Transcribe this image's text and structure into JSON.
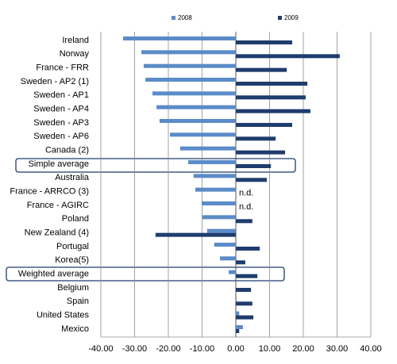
{
  "chart_data": {
    "type": "bar",
    "orientation": "horizontal",
    "categories": [
      "Ireland",
      "Norway",
      "France - FRR",
      "Sweden - AP2 (1)",
      "Sweden - AP1",
      "Sweden - AP4",
      "Sweden - AP3",
      "Sweden - AP6",
      "Canada (2)",
      "Simple average",
      "Australia",
      "France - ARRCO (3)",
      "France - AGIRC",
      "Poland",
      "New Zealand (4)",
      "Portugal",
      "Korea(5)",
      "Weighted average",
      "Belgium",
      "Spain",
      "United States",
      "Mexico"
    ],
    "series": [
      {
        "name": "2008",
        "color": "#5b8bc8",
        "values": [
          -33.4,
          -28.0,
          -27.3,
          -26.8,
          -24.7,
          -23.5,
          -22.6,
          -19.5,
          -16.5,
          -14.1,
          -12.5,
          -12.0,
          -10.1,
          -9.9,
          -8.5,
          -6.4,
          -4.7,
          -2.1,
          0,
          0.2,
          1.0,
          2.1
        ]
      },
      {
        "name": "2009",
        "color": "#1f3c6e",
        "values": [
          16.7,
          30.8,
          15.1,
          21.2,
          20.7,
          22.1,
          16.7,
          11.8,
          14.6,
          10.4,
          9.2,
          null,
          null,
          4.9,
          -23.8,
          7.1,
          2.8,
          6.4,
          4.5,
          4.9,
          5.2,
          1.0
        ],
        "value_labels": [
          null,
          null,
          null,
          null,
          null,
          null,
          null,
          null,
          null,
          null,
          null,
          "n.d.",
          "n.d.",
          null,
          null,
          null,
          null,
          null,
          null,
          null,
          null,
          null
        ]
      }
    ],
    "xlim": [
      -40,
      40
    ],
    "xticks": [
      {
        "value": -40,
        "label": "-40.00"
      },
      {
        "value": -30,
        "label": "-30.00"
      },
      {
        "value": -20,
        "label": "-20.00"
      },
      {
        "value": -10,
        "label": "-10.00"
      },
      {
        "value": 0,
        "label": "0.00"
      },
      {
        "value": 10,
        "label": "10.00"
      },
      {
        "value": 20,
        "label": "20.00"
      },
      {
        "value": 30,
        "label": "30.00"
      },
      {
        "value": 40,
        "label": "40.00"
      }
    ],
    "grid": true,
    "legend": "top"
  }
}
